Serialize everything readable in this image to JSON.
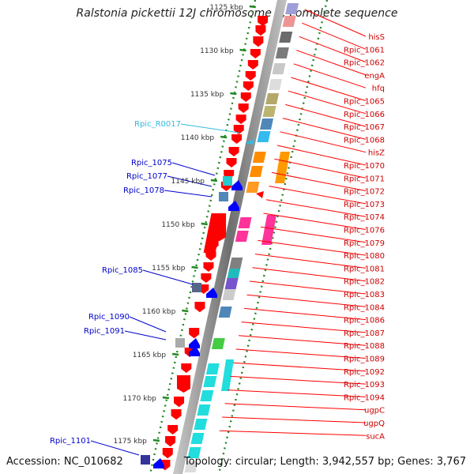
{
  "title": "Ralstonia pickettii 12J chromosome 1, complete sequence",
  "accession": "Accession: NC_010682",
  "topology": "Topology: circular; Length: 3,942,557 bp; Genes: 3,767",
  "ticks": [
    "1125 kbp",
    "1130 kbp",
    "1135 kbp",
    "1140 kbp",
    "1145 kbp",
    "1150 kbp",
    "1155 kbp",
    "1160 kbp",
    "1165 kbp",
    "1170 kbp",
    "1175 kbp"
  ],
  "right_labels": [
    "hisS",
    "Rpic_1061",
    "Rpic_1062",
    "engA",
    "hfq",
    "Rpic_1065",
    "Rpic_1066",
    "Rpic_1067",
    "Rpic_1068",
    "hisZ",
    "Rpic_1070",
    "Rpic_1071",
    "Rpic_1072",
    "Rpic_1073",
    "Rpic_1074",
    "Rpic_1076",
    "Rpic_1079",
    "Rpic_1080",
    "Rpic_1081",
    "Rpic_1082",
    "Rpic_1083",
    "Rpic_1084",
    "Rpic_1086",
    "Rpic_1087",
    "Rpic_1088",
    "Rpic_1089",
    "Rpic_1092",
    "Rpic_1093",
    "Rpic_1094",
    "ugpC",
    "ugpQ",
    "sucA"
  ],
  "left_labels": [
    {
      "text": "Rpic_R0017",
      "type": "rna"
    },
    {
      "text": "Rpic_1075",
      "type": "gene"
    },
    {
      "text": "Rpic_1077",
      "type": "gene"
    },
    {
      "text": "Rpic_1078",
      "type": "gene"
    },
    {
      "text": "Rpic_1085",
      "type": "gene"
    },
    {
      "text": "Rpic_1090",
      "type": "gene"
    },
    {
      "text": "Rpic_1091",
      "type": "gene"
    },
    {
      "text": "Rpic_1101",
      "type": "gene"
    }
  ],
  "colors": {
    "forward": "#ff0000",
    "reverse": "#0000ff",
    "rna": "#33bbdd",
    "backbone": "#888888",
    "tick": "#228822"
  }
}
